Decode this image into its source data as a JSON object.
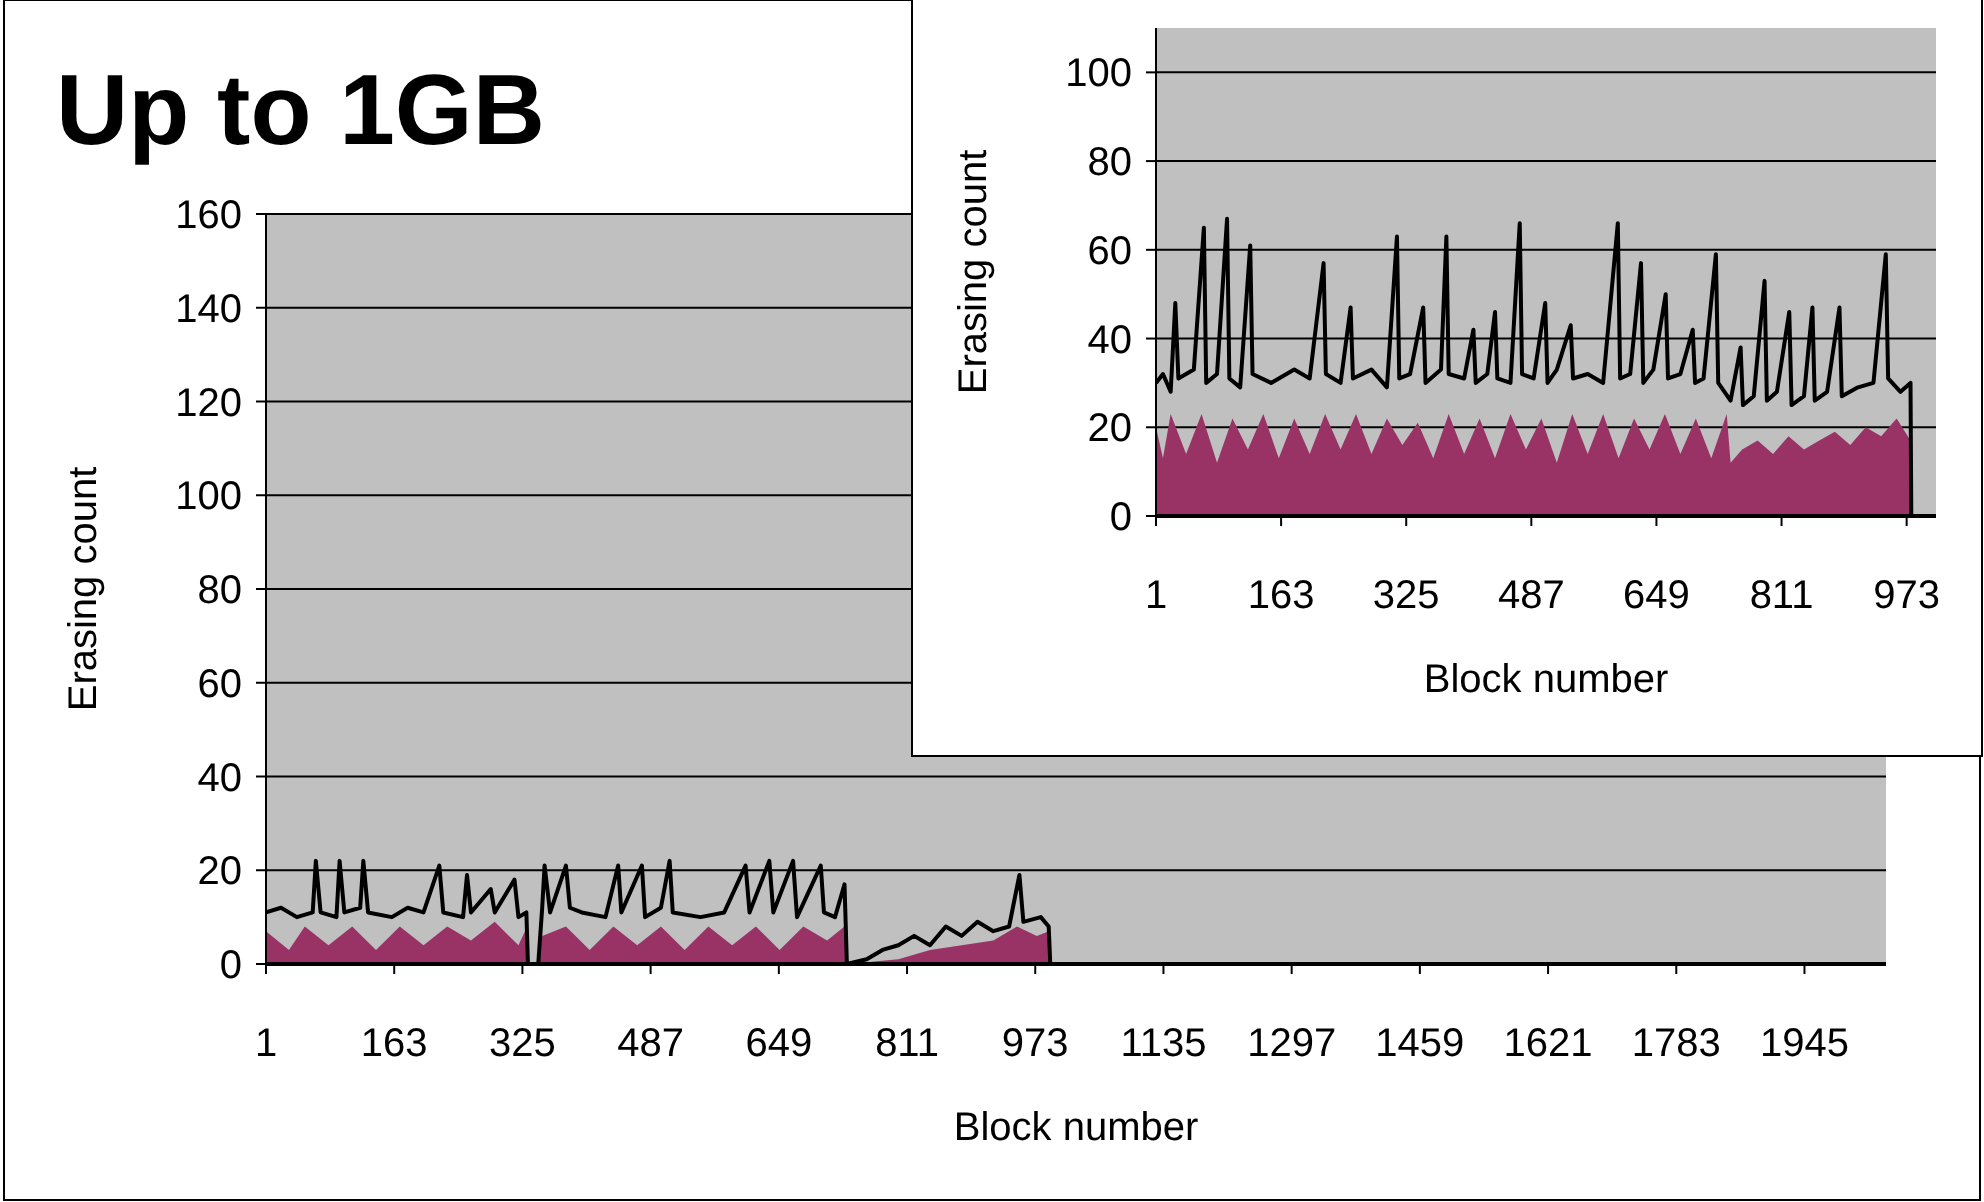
{
  "chart_data": [
    {
      "type": "area",
      "title": "Up to 1GB",
      "xlabel": "Block number",
      "ylabel": "Erasing count",
      "xlim": [
        1,
        2048
      ],
      "xticks": [
        1,
        163,
        325,
        487,
        649,
        811,
        973,
        1135,
        1297,
        1459,
        1621,
        1783,
        1945
      ],
      "ylim": [
        0,
        160
      ],
      "yticks": [
        0,
        20,
        40,
        60,
        80,
        100,
        120,
        140,
        160
      ],
      "grid": "y",
      "series": [
        {
          "type": "area",
          "color": "#993366",
          "x": [
            1,
            30,
            50,
            80,
            110,
            140,
            170,
            200,
            230,
            260,
            290,
            320,
            331,
            332,
            345,
            350,
            380,
            410,
            440,
            470,
            500,
            530,
            560,
            590,
            620,
            650,
            680,
            710,
            732,
            735,
            800,
            840,
            880,
            920,
            950,
            975,
            990,
            992,
            2048
          ],
          "values": [
            7,
            3,
            8,
            4,
            8,
            3,
            8,
            4,
            8,
            5,
            9,
            4,
            8,
            0,
            0,
            6,
            8,
            3,
            8,
            4,
            8,
            3,
            8,
            4,
            8,
            3,
            8,
            5,
            8,
            0,
            1,
            3,
            4,
            5,
            8,
            6,
            7,
            0,
            0
          ]
        },
        {
          "type": "line",
          "color": "#000000",
          "x": [
            1,
            20,
            40,
            60,
            64,
            70,
            90,
            94,
            100,
            120,
            124,
            130,
            160,
            180,
            200,
            220,
            225,
            250,
            255,
            260,
            285,
            290,
            315,
            320,
            330,
            332,
            345,
            350,
            353,
            360,
            380,
            385,
            400,
            430,
            446,
            450,
            476,
            480,
            500,
            511,
            515,
            550,
            580,
            607,
            612,
            637,
            642,
            667,
            672,
            702,
            706,
            720,
            732,
            735,
            760,
            780,
            800,
            820,
            840,
            860,
            880,
            900,
            920,
            940,
            953,
            958,
            980,
            990,
            992,
            2048
          ],
          "values": [
            11,
            12,
            10,
            11,
            22,
            11,
            10,
            22,
            11,
            12,
            22,
            11,
            10,
            12,
            11,
            21,
            11,
            10,
            19,
            11,
            16,
            11,
            18,
            10,
            11,
            0,
            0,
            12,
            21,
            11,
            21,
            12,
            11,
            10,
            21,
            11,
            21,
            10,
            12,
            22,
            11,
            10,
            11,
            21,
            11,
            22,
            11,
            22,
            10,
            21,
            11,
            10,
            17,
            0,
            1,
            3,
            4,
            6,
            4,
            8,
            6,
            9,
            7,
            8,
            19,
            9,
            10,
            8,
            0,
            0
          ]
        }
      ]
    },
    {
      "type": "area",
      "xlabel": "Block number",
      "ylabel": "Erasing count",
      "xlim": [
        1,
        1011
      ],
      "xticks": [
        1,
        163,
        325,
        487,
        649,
        811,
        973
      ],
      "ylim": [
        0,
        110
      ],
      "yticks": [
        0,
        20,
        40,
        60,
        80,
        100
      ],
      "grid": "y",
      "series": [
        {
          "type": "area",
          "color": "#993366",
          "x": [
            1,
            10,
            20,
            40,
            60,
            80,
            100,
            120,
            140,
            160,
            180,
            200,
            220,
            240,
            260,
            280,
            300,
            320,
            340,
            360,
            380,
            400,
            420,
            440,
            460,
            480,
            500,
            520,
            540,
            560,
            580,
            600,
            620,
            640,
            660,
            680,
            700,
            720,
            740,
            745,
            760,
            780,
            800,
            820,
            840,
            860,
            880,
            900,
            920,
            940,
            960,
            978,
            979,
            1011
          ],
          "values": [
            20,
            13,
            23,
            14,
            23,
            12,
            22,
            15,
            23,
            13,
            22,
            14,
            23,
            15,
            23,
            14,
            22,
            16,
            21,
            13,
            23,
            14,
            22,
            13,
            23,
            15,
            22,
            12,
            23,
            14,
            23,
            13,
            22,
            15,
            23,
            14,
            22,
            13,
            23,
            12,
            15,
            17,
            14,
            18,
            15,
            17,
            19,
            16,
            20,
            18,
            22,
            17,
            0,
            0
          ]
        },
        {
          "type": "line",
          "color": "#000000",
          "x": [
            1,
            10,
            20,
            26,
            30,
            50,
            63,
            66,
            80,
            93,
            96,
            110,
            123,
            126,
            150,
            180,
            200,
            218,
            221,
            240,
            253,
            256,
            280,
            300,
            313,
            316,
            330,
            347,
            350,
            370,
            377,
            380,
            400,
            412,
            415,
            430,
            440,
            443,
            460,
            472,
            475,
            490,
            505,
            508,
            520,
            538,
            541,
            560,
            580,
            599,
            602,
            615,
            629,
            632,
            645,
            661,
            664,
            680,
            696,
            699,
            710,
            726,
            729,
            745,
            758,
            761,
            775,
            789,
            792,
            805,
            821,
            824,
            840,
            851,
            854,
            870,
            886,
            889,
            910,
            930,
            946,
            949,
            965,
            978,
            979,
            1011
          ],
          "values": [
            30,
            32,
            28,
            48,
            31,
            33,
            65,
            30,
            32,
            67,
            31,
            29,
            61,
            32,
            30,
            33,
            31,
            57,
            32,
            30,
            47,
            31,
            33,
            29,
            63,
            31,
            32,
            47,
            30,
            33,
            63,
            32,
            31,
            42,
            30,
            32,
            46,
            31,
            30,
            66,
            32,
            31,
            48,
            30,
            33,
            43,
            31,
            32,
            30,
            66,
            31,
            32,
            57,
            30,
            33,
            50,
            31,
            32,
            42,
            30,
            31,
            59,
            30,
            26,
            38,
            25,
            27,
            53,
            26,
            28,
            46,
            25,
            27,
            47,
            26,
            28,
            47,
            27,
            29,
            30,
            59,
            31,
            28,
            30,
            0,
            0
          ]
        }
      ]
    }
  ]
}
